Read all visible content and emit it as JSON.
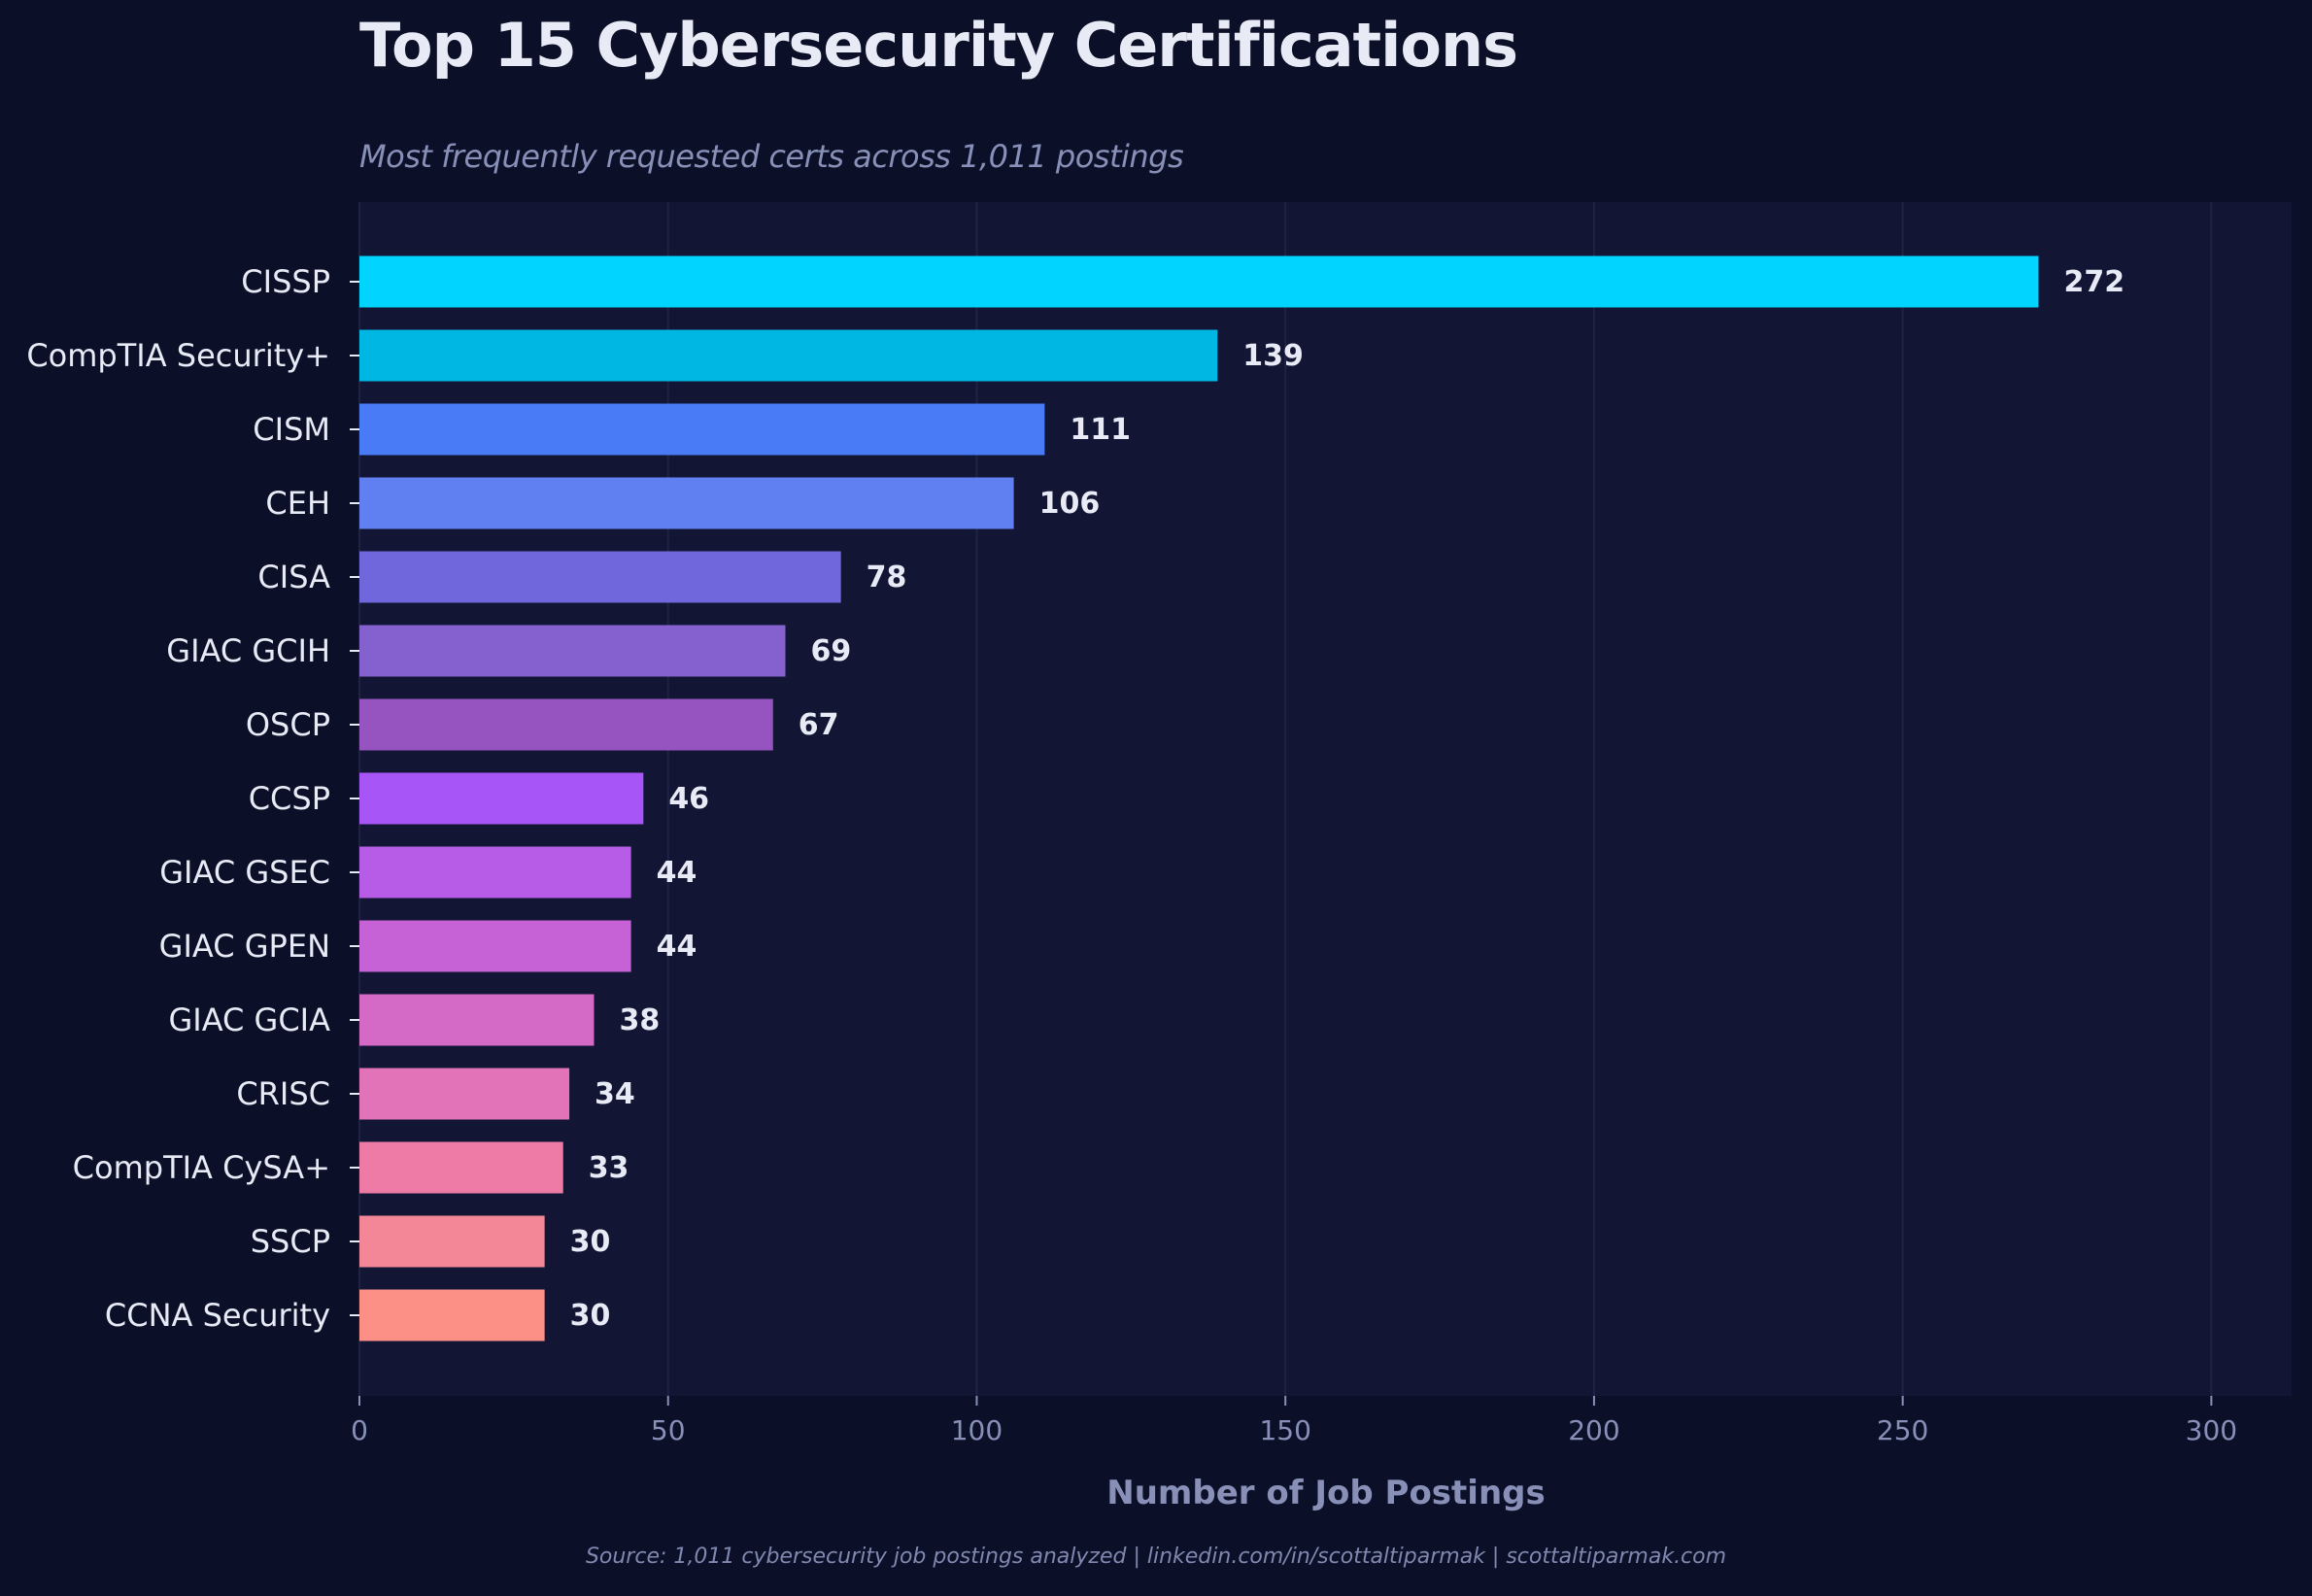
{
  "chart_data": {
    "type": "bar",
    "orientation": "horizontal",
    "title": "Top 15 Cybersecurity Certifications",
    "subtitle": "Most frequently requested certs across 1,011 postings",
    "xlabel": "Number of Job Postings",
    "ylabel": "",
    "xlim": [
      0,
      313
    ],
    "xticks": [
      0,
      50,
      100,
      150,
      200,
      250,
      300
    ],
    "grid": "vertical",
    "categories": [
      "CISSP",
      "CompTIA Security+",
      "CISM",
      "CEH",
      "CISA",
      "GIAC GCIH",
      "OSCP",
      "CCSP",
      "GIAC GSEC",
      "GIAC GPEN",
      "GIAC GCIA",
      "CRISC",
      "CompTIA CySA+",
      "SSCP",
      "CCNA Security"
    ],
    "values": [
      272,
      139,
      111,
      106,
      78,
      69,
      67,
      46,
      44,
      44,
      38,
      34,
      33,
      30,
      30
    ],
    "colors": [
      "#00d4ff",
      "#00b6e3",
      "#4a7bf7",
      "#6080f2",
      "#7067dc",
      "#8561d0",
      "#9554c0",
      "#a855f7",
      "#b75ce6",
      "#c662d6",
      "#d46ac6",
      "#e273b8",
      "#ed7ba6",
      "#f48797",
      "#fc9087"
    ],
    "source": "Source: 1,011 cybersecurity job postings analyzed  |  linkedin.com/in/scottaltiparmak  |  scottaltiparmak.com"
  },
  "theme": {
    "background": "#0b0f27",
    "plot_background": "#121634",
    "grid": "#1e2346",
    "text": "#e8eaf6",
    "muted": "#8890b8"
  }
}
